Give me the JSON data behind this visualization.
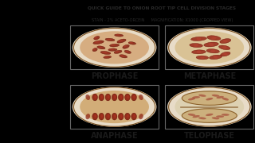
{
  "background_color": "#000000",
  "center_bg": "#c8bc9e",
  "title_text": "QUICK GUIDE TO ONION ROOT TIP CELL DIVISION STAGES",
  "subtitle_text": "STAIN - 2% ACETO-ORCEIN     MAGNIFICATION: X1000 (CROPPED VIEW)",
  "labels": [
    "PROPHASE",
    "METAPHASE",
    "ANAPHASE",
    "TELOPHASE"
  ],
  "title_color": "#2a2a2a",
  "label_color": "#1a1a1a",
  "title_fontsize": 4.2,
  "subtitle_fontsize": 3.6,
  "label_fontsize": 7.0,
  "border_color": "#555555"
}
